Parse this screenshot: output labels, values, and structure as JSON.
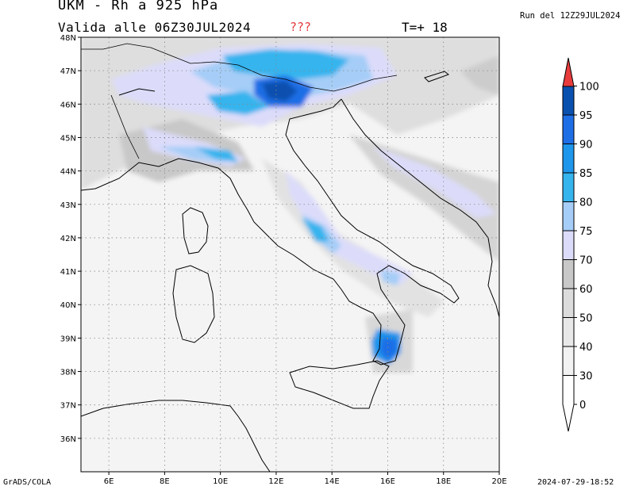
{
  "header": {
    "title": "UKM - Rh a 925 hPa",
    "valid": "Valida alle 06Z30JUL2024",
    "marker": "???",
    "timestep": "T=+ 18",
    "run": "Run del 12Z29JUL2024"
  },
  "footer": {
    "credit": "GrADS/COLA",
    "timestamp": "2024-07-29-18:52"
  },
  "map": {
    "lat_labels": [
      "48N",
      "47N",
      "46N",
      "45N",
      "44N",
      "43N",
      "42N",
      "41N",
      "40N",
      "39N",
      "38N",
      "37N",
      "36N"
    ],
    "lon_labels": [
      "6E",
      "8E",
      "10E",
      "12E",
      "14E",
      "16E",
      "18E",
      "20E"
    ],
    "lat_range": [
      35,
      48
    ],
    "lon_range": [
      5,
      20
    ]
  },
  "legend": {
    "levels": [
      "0",
      "30",
      "40",
      "50",
      "60",
      "70",
      "75",
      "80",
      "85",
      "90",
      "95",
      "100"
    ],
    "colors": [
      "#ffffff",
      "#f2f2f2",
      "#e8e8e8",
      "#dcdcdc",
      "#c8c8c8",
      "#dcdcfa",
      "#a5cdf7",
      "#35b4ee",
      "#1e96eb",
      "#1e6ee6",
      "#0a50af",
      "#e83c3c"
    ]
  }
}
